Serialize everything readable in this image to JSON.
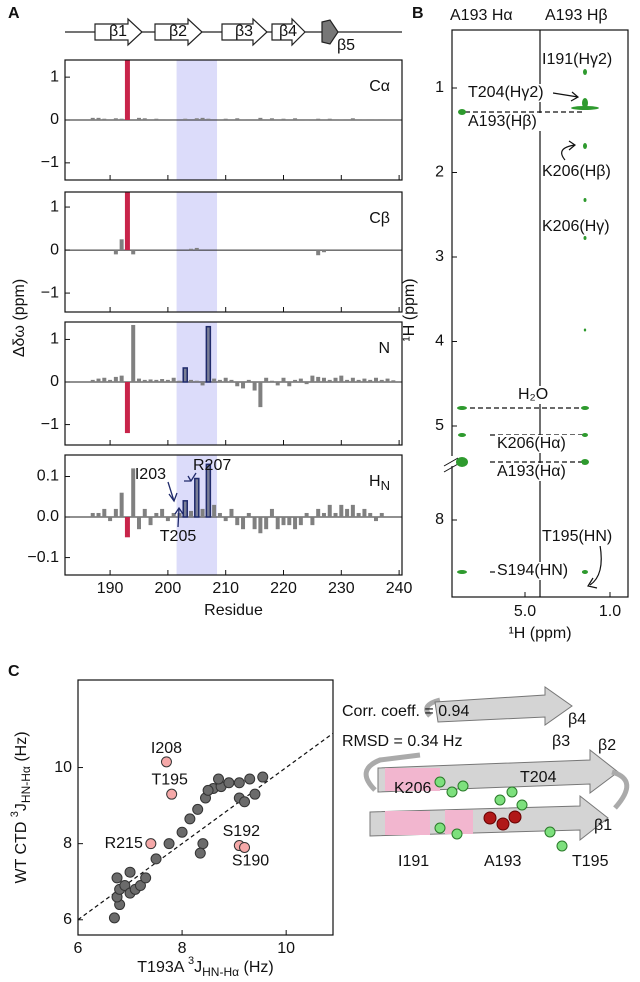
{
  "panels": [
    "A",
    "B",
    "C"
  ],
  "panel_a": {
    "ylabel": "Δδω (ppm)",
    "strands": [
      "β1",
      "β2",
      "β3",
      "β4",
      "β5"
    ]
  },
  "panel_b": {
    "headers": [
      "A193 Hα",
      "A193 Hβ"
    ],
    "labels": [
      "I191(Hγ2)",
      "T204(Hγ2)",
      "A193(Hβ)",
      "K206(Hβ)",
      "K206(Hγ)",
      "H₂O",
      "K206(Hα)",
      "A193(Hα)",
      "T195(HN)",
      "S194(HN)"
    ],
    "yticks": [
      1,
      2,
      3,
      4,
      5,
      8
    ],
    "xticks": [
      {
        "value": 5,
        "label": "5.0"
      },
      {
        "value": 1,
        "label": "1.0"
      }
    ],
    "xlabel": "¹H (ppm)",
    "ylabel": "¹H (ppm)"
  },
  "structure_labels": [
    "β4",
    "β3",
    "β2",
    "β1",
    "K206",
    "T204",
    "I191",
    "A193",
    "T195"
  ],
  "chart_data": [
    {
      "type": "bar",
      "title": "Cα",
      "color": "#808080",
      "highlight": {
        "x": 193,
        "color": "#c8244a"
      },
      "outlined": [],
      "outline_color": "#1f2a6b",
      "shade": [
        201.5,
        208.5
      ],
      "shade_color": "#dcdcfa",
      "xlim": [
        182.2,
        240.5
      ],
      "xticks": [
        190,
        200,
        210,
        220,
        230,
        240
      ],
      "xtick_labels": false,
      "ylim": [
        -1.4,
        1.4
      ],
      "yticks": [
        {
          "value": -1,
          "label": "−1"
        },
        0,
        1
      ],
      "x": [
        187,
        188,
        189,
        191,
        192,
        193,
        195,
        196,
        198,
        200,
        201,
        203,
        205,
        206,
        207,
        209,
        210,
        212,
        213,
        216,
        218,
        220,
        222,
        224,
        226,
        228,
        230,
        232,
        234,
        236,
        238
      ],
      "values": [
        0.05,
        0.05,
        0.03,
        0.04,
        0.03,
        1.4,
        0.05,
        0.04,
        0.03,
        0.02,
        -0.02,
        0.03,
        0.04,
        0.05,
        0.03,
        0.02,
        0.03,
        0.04,
        0.02,
        0.05,
        0.04,
        0.03,
        0.04,
        -0.02,
        0.03,
        0.03,
        0.02,
        0.04,
        0.02,
        0.02,
        0.02
      ]
    },
    {
      "type": "bar",
      "title": "Cβ",
      "color": "#808080",
      "highlight": {
        "x": 193,
        "color": "#c8244a"
      },
      "outlined": [],
      "outline_color": "#1f2a6b",
      "shade": [
        201.5,
        208.5
      ],
      "shade_color": "#dcdcfa",
      "xlim": [
        182.2,
        240.5
      ],
      "xticks": [
        190,
        200,
        210,
        220,
        230,
        240
      ],
      "xtick_labels": false,
      "ylim": [
        -1.44,
        1.35
      ],
      "yticks": [
        {
          "value": -1,
          "label": "−1"
        },
        0,
        1
      ],
      "x": [
        191,
        192,
        193,
        194,
        204,
        205,
        226,
        227
      ],
      "values": [
        -0.1,
        0.25,
        1.35,
        -0.1,
        0.03,
        0.05,
        -0.12,
        -0.05
      ]
    },
    {
      "type": "bar",
      "title": "N",
      "color": "#808080",
      "highlight": {
        "x": 193,
        "color": "#c8244a"
      },
      "outlined": [
        203,
        207
      ],
      "outline_color": "#1f2a6b",
      "shade": [
        201.5,
        208.5
      ],
      "shade_color": "#dcdcfa",
      "xlim": [
        182.2,
        240.5
      ],
      "xticks": [
        190,
        200,
        210,
        220,
        230,
        240
      ],
      "xtick_labels": false,
      "ylim": [
        -1.48,
        1.41
      ],
      "yticks": [
        {
          "value": -1,
          "label": "−1"
        },
        0,
        1
      ],
      "x": [
        187,
        188,
        189,
        190,
        191,
        192,
        193,
        194,
        195,
        196,
        197,
        198,
        199,
        200,
        201,
        202,
        203,
        204,
        205,
        206,
        207,
        208,
        209,
        210,
        211,
        212,
        213,
        214,
        215,
        216,
        217,
        218,
        219,
        220,
        221,
        222,
        223,
        224,
        225,
        226,
        227,
        228,
        229,
        230,
        231,
        232,
        233,
        234,
        235,
        236,
        237,
        238,
        239
      ],
      "values": [
        0.05,
        0.08,
        0.1,
        0.05,
        0.12,
        0.15,
        -1.2,
        1.34,
        0.08,
        0.05,
        0.06,
        0.05,
        0.07,
        0.05,
        0.1,
        0.03,
        0.33,
        0.05,
        0.03,
        -0.08,
        1.3,
        0.08,
        0.05,
        0.1,
        0.05,
        -0.1,
        -0.15,
        0.05,
        -0.2,
        -0.59,
        0.1,
        0.03,
        -0.08,
        0.1,
        -0.1,
        0.05,
        0.08,
        -0.05,
        0.15,
        0.12,
        0.1,
        0.05,
        0.1,
        0.15,
        0.05,
        0.1,
        0.05,
        0.08,
        0.05,
        0.1,
        0.05,
        0.08,
        0.04
      ]
    },
    {
      "type": "bar",
      "title": "H",
      "title_sub": "N",
      "color": "#808080",
      "highlight": {
        "x": 193,
        "color": "#c8244a"
      },
      "outlined": [
        203,
        205,
        207
      ],
      "outline_color": "#1f2a6b",
      "shade": [
        201.5,
        208.5
      ],
      "shade_color": "#dcdcfa",
      "xlim": [
        182.2,
        240.5
      ],
      "xticks": [
        190,
        200,
        210,
        220,
        230,
        240
      ],
      "xtick_labels": true,
      "xlabel": "Residue",
      "ylim": [
        -0.143,
        0.153
      ],
      "yticks": [
        {
          "value": -0.1,
          "label": "−0.1"
        },
        {
          "value": 0,
          "label": "0.0"
        },
        0.1
      ],
      "annotations": [
        "I203",
        "T205",
        "R207"
      ],
      "x": [
        187,
        188,
        189,
        190,
        191,
        192,
        193,
        194,
        195,
        196,
        197,
        198,
        199,
        200,
        201,
        202,
        203,
        204,
        205,
        206,
        207,
        208,
        209,
        210,
        211,
        212,
        213,
        214,
        215,
        216,
        217,
        218,
        219,
        220,
        221,
        222,
        223,
        224,
        225,
        226,
        227,
        228,
        229,
        230,
        231,
        232,
        233,
        234,
        235,
        236,
        237
      ],
      "values": [
        0.01,
        0.01,
        0.02,
        -0.01,
        0.02,
        0.06,
        -0.05,
        0.12,
        -0.03,
        0.02,
        -0.02,
        0.01,
        0.02,
        -0.01,
        0.01,
        0.01,
        0.04,
        0.015,
        0.095,
        0.02,
        0.13,
        0.03,
        0.01,
        -0.01,
        0.02,
        -0.02,
        -0.03,
        0.01,
        -0.03,
        -0.04,
        -0.03,
        0.02,
        -0.03,
        -0.02,
        -0.02,
        -0.03,
        -0.02,
        0.01,
        -0.02,
        0.02,
        0.01,
        0.03,
        0.01,
        0.03,
        0.02,
        0.03,
        0.01,
        0.02,
        0.01,
        -0.01,
        0.01
      ]
    },
    {
      "type": "scatter",
      "xlim": [
        6,
        10.9
      ],
      "ylim": [
        5.6,
        12.3
      ],
      "xticks": [
        6,
        8,
        10
      ],
      "yticks": [
        6,
        8,
        10
      ],
      "diagonal": true,
      "xlabel": {
        "pre": "T193A ",
        "sup": "3",
        "main": "J",
        "sub": "HN-Hα",
        "post": " (Hz)"
      },
      "ylabel": {
        "pre": "WT CTD ",
        "sup": "3",
        "main": "J",
        "sub": "HN-Hα",
        "post": " (Hz)"
      },
      "annotations": [
        "Corr. coeff. = 0.94",
        "RMSD = 0.34 Hz"
      ],
      "series": [
        {
          "color": "#6b6b6b",
          "x": [
            6.7,
            6.8,
            6.75,
            6.8,
            6.75,
            6.9,
            7.0,
            7.1,
            7.2,
            7.3,
            7.0,
            7.5,
            7.75,
            8.0,
            8.15,
            8.3,
            8.45,
            8.6,
            8.75,
            8.7,
            8.9,
            9.1,
            9.3,
            9.55,
            9.4,
            9.1,
            9.2,
            8.4,
            8.35,
            8.5
          ],
          "values": [
            6.05,
            6.4,
            6.6,
            6.8,
            7.1,
            6.9,
            6.7,
            6.8,
            6.9,
            7.1,
            7.25,
            7.6,
            8.0,
            8.3,
            8.65,
            8.9,
            9.2,
            9.45,
            9.5,
            9.7,
            9.6,
            9.6,
            9.7,
            9.75,
            9.3,
            9.2,
            9.1,
            8.0,
            7.75,
            9.4
          ]
        },
        {
          "color": "#f5a8a8",
          "labels": [
            "I208",
            "T195",
            "R215",
            "S192",
            "S190"
          ],
          "x": [
            7.7,
            7.8,
            7.4,
            9.1,
            9.2
          ],
          "values": [
            10.15,
            9.3,
            8.0,
            7.95,
            7.9
          ]
        }
      ]
    }
  ]
}
